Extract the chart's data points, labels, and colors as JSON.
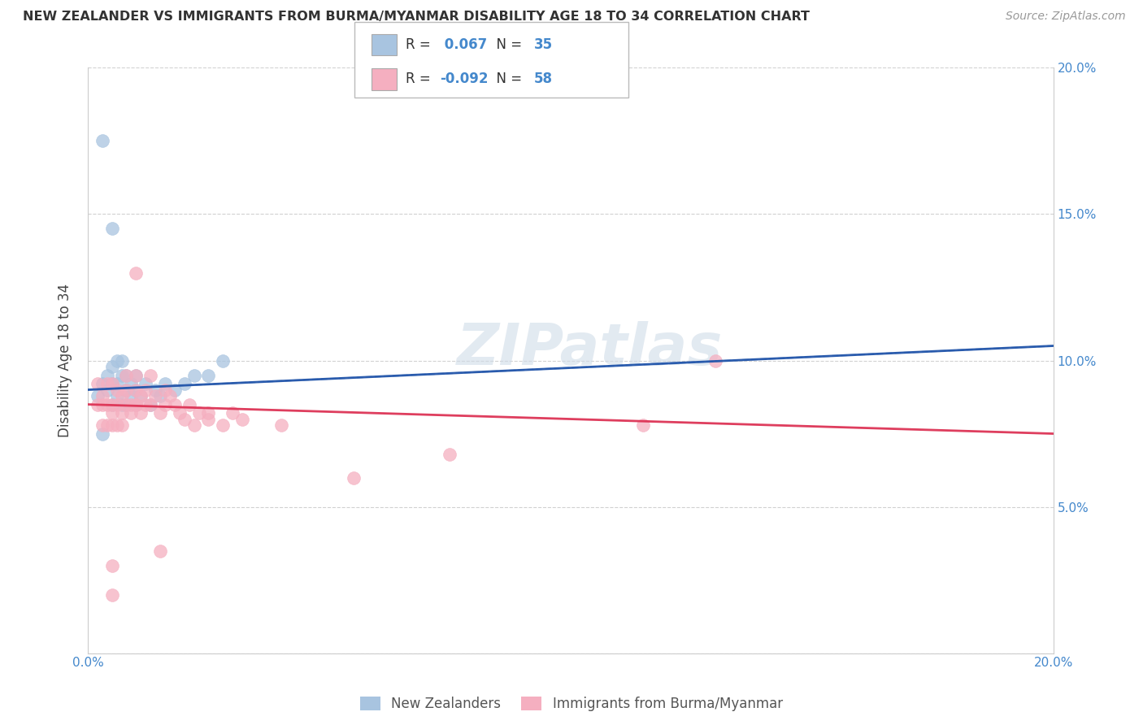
{
  "title": "NEW ZEALANDER VS IMMIGRANTS FROM BURMA/MYANMAR DISABILITY AGE 18 TO 34 CORRELATION CHART",
  "source": "Source: ZipAtlas.com",
  "ylabel": "Disability Age 18 to 34",
  "xlim": [
    0.0,
    0.2
  ],
  "ylim": [
    0.0,
    0.2
  ],
  "blue_r": 0.067,
  "blue_n": 35,
  "pink_r": -0.092,
  "pink_n": 58,
  "blue_color": "#a8c4e0",
  "pink_color": "#f5afc0",
  "blue_line_color": "#2255aa",
  "pink_line_color": "#dd3355",
  "watermark": "ZIPatlas",
  "blue_points_x": [
    0.002,
    0.003,
    0.003,
    0.004,
    0.004,
    0.005,
    0.005,
    0.005,
    0.006,
    0.006,
    0.006,
    0.007,
    0.007,
    0.007,
    0.008,
    0.008,
    0.008,
    0.009,
    0.009,
    0.01,
    0.01,
    0.01,
    0.011,
    0.012,
    0.013,
    0.014,
    0.015,
    0.016,
    0.018,
    0.02,
    0.022,
    0.025,
    0.028,
    0.005,
    0.003
  ],
  "blue_points_y": [
    0.088,
    0.092,
    0.075,
    0.09,
    0.095,
    0.085,
    0.092,
    0.098,
    0.088,
    0.1,
    0.092,
    0.085,
    0.095,
    0.1,
    0.09,
    0.095,
    0.085,
    0.092,
    0.088,
    0.09,
    0.085,
    0.095,
    0.088,
    0.092,
    0.085,
    0.09,
    0.088,
    0.092,
    0.09,
    0.092,
    0.095,
    0.095,
    0.1,
    0.145,
    0.175
  ],
  "pink_points_x": [
    0.002,
    0.002,
    0.003,
    0.003,
    0.003,
    0.004,
    0.004,
    0.004,
    0.005,
    0.005,
    0.005,
    0.005,
    0.006,
    0.006,
    0.006,
    0.007,
    0.007,
    0.007,
    0.008,
    0.008,
    0.008,
    0.009,
    0.009,
    0.01,
    0.01,
    0.01,
    0.011,
    0.011,
    0.012,
    0.012,
    0.013,
    0.013,
    0.014,
    0.015,
    0.016,
    0.016,
    0.017,
    0.018,
    0.019,
    0.02,
    0.021,
    0.022,
    0.023,
    0.025,
    0.028,
    0.03,
    0.032,
    0.04,
    0.055,
    0.075,
    0.115,
    0.13,
    0.005,
    0.01,
    0.015,
    0.025,
    0.005,
    0.01
  ],
  "pink_points_y": [
    0.085,
    0.092,
    0.085,
    0.088,
    0.078,
    0.092,
    0.085,
    0.078,
    0.092,
    0.085,
    0.078,
    0.082,
    0.09,
    0.085,
    0.078,
    0.088,
    0.082,
    0.078,
    0.09,
    0.085,
    0.095,
    0.085,
    0.082,
    0.09,
    0.085,
    0.095,
    0.088,
    0.082,
    0.085,
    0.09,
    0.095,
    0.085,
    0.088,
    0.082,
    0.09,
    0.085,
    0.088,
    0.085,
    0.082,
    0.08,
    0.085,
    0.078,
    0.082,
    0.08,
    0.078,
    0.082,
    0.08,
    0.078,
    0.06,
    0.068,
    0.078,
    0.1,
    0.03,
    0.085,
    0.035,
    0.082,
    0.02,
    0.13
  ]
}
